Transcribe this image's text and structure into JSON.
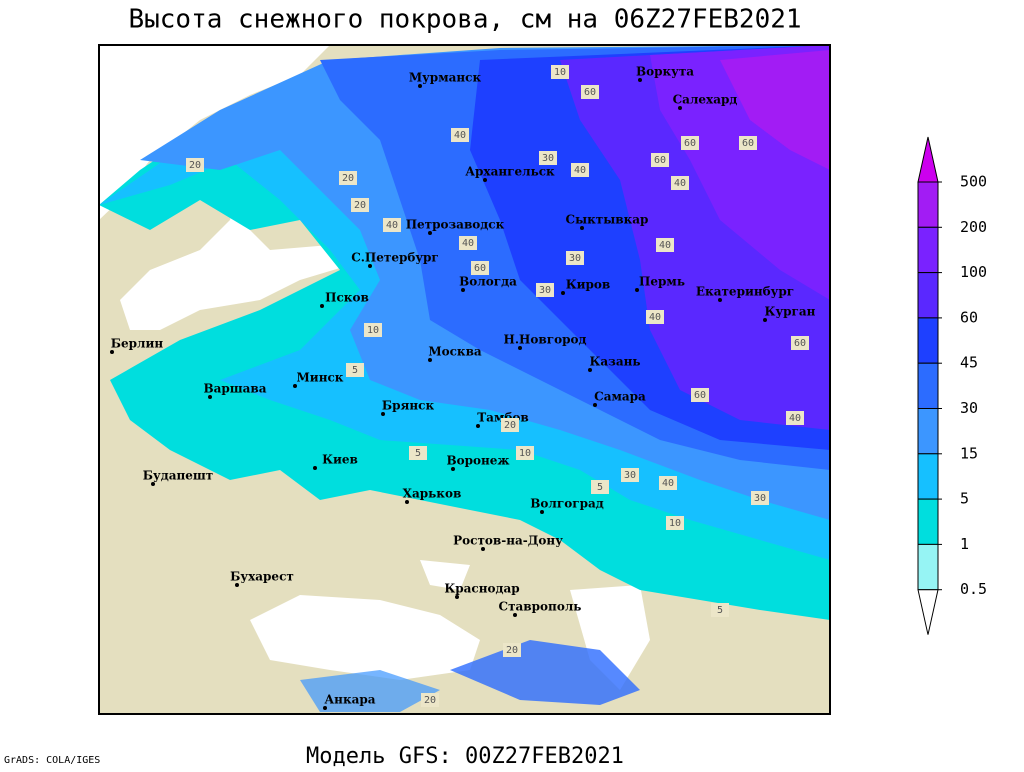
{
  "title": "Высота снежного покрова, см на 06Z27FEB2021",
  "subtitle": "Модель GFS: 00Z27FEB2021",
  "credit": "GrADS: COLA/IGES",
  "legend": {
    "levels": [
      500,
      200,
      100,
      60,
      45,
      30,
      15,
      5,
      1,
      0.5
    ],
    "colors": [
      "#cc00ee",
      "#a21cf4",
      "#7a22ff",
      "#5a28ff",
      "#1e40ff",
      "#2c6cff",
      "#3c96ff",
      "#16c0ff",
      "#00dede",
      "#96f4f4",
      "#ffffff"
    ]
  },
  "cities": [
    "Мурманск",
    "Воркута",
    "Салехард",
    "Архангельск",
    "Сыктывкар",
    "Петрозаводск",
    "С.Петербург",
    "Вологда",
    "Киров",
    "Пермь",
    "Екатеринбург",
    "Курган",
    "Псков",
    "Берлин",
    "Москва",
    "Н.Новгород",
    "Казань",
    "Минск",
    "Варшава",
    "Брянск",
    "Тамбов",
    "Самара",
    "Киев",
    "Воронеж",
    "Будапешт",
    "Харьков",
    "Волгоград",
    "Ростов-на-Дону",
    "Бухарест",
    "Краснодар",
    "Ставрополь",
    "Анкара"
  ],
  "contour_labels": [
    10,
    40,
    60,
    30,
    20,
    40,
    60,
    60,
    60,
    40,
    20,
    20,
    40,
    40,
    30,
    40,
    60,
    30,
    10,
    40,
    60,
    60,
    40,
    20,
    5,
    10,
    30,
    40,
    10,
    5,
    30,
    5,
    20,
    20,
    5
  ]
}
